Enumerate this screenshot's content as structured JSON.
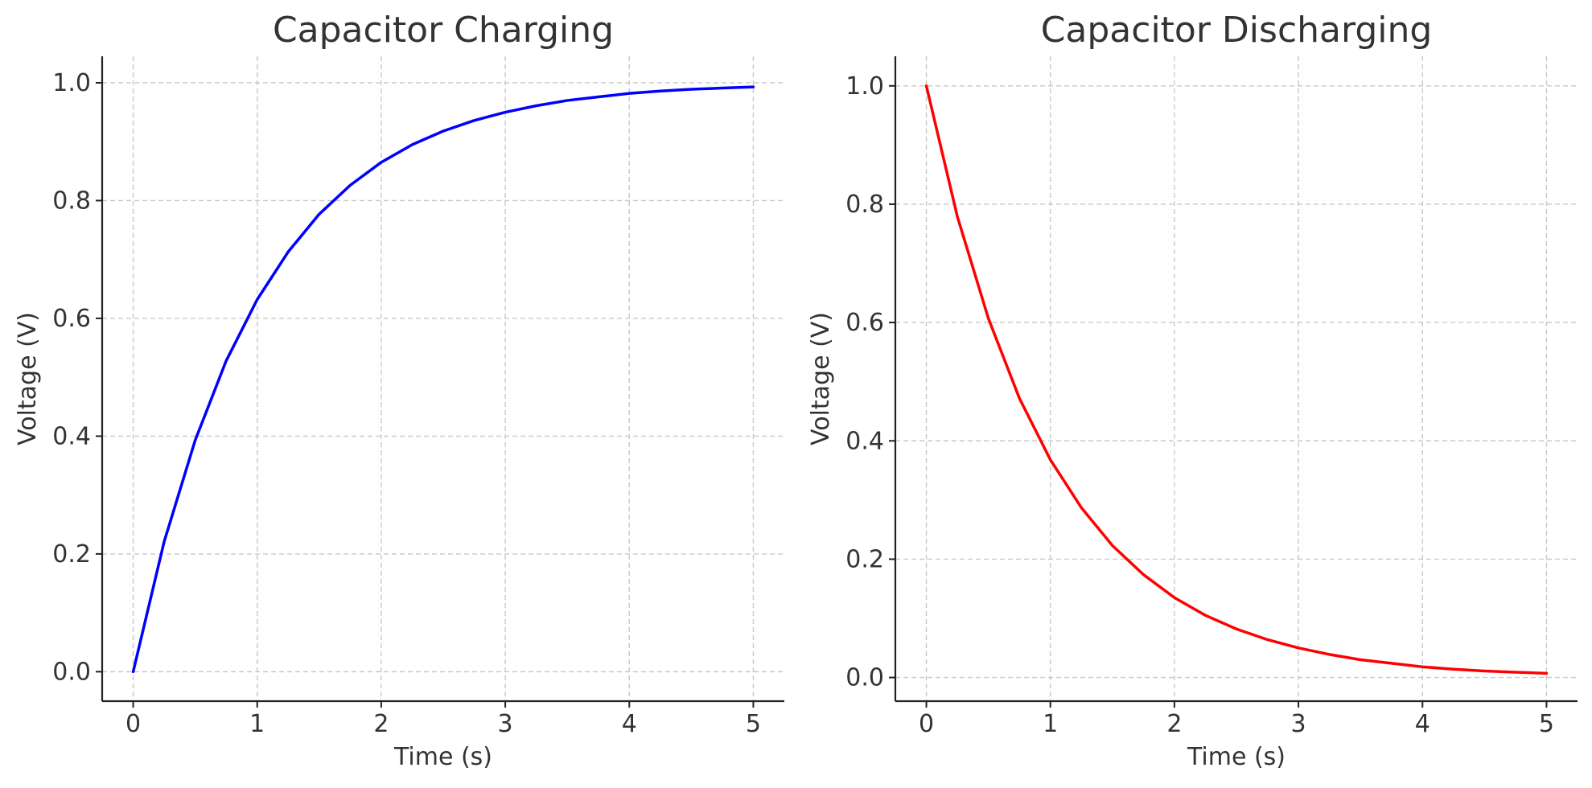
{
  "chart_data": [
    {
      "type": "line",
      "title": "Capacitor Charging",
      "xlabel": "Time (s)",
      "ylabel": "Voltage (V)",
      "xlim": [
        -0.25,
        5.25
      ],
      "ylim": [
        -0.05,
        1.045
      ],
      "xticks": [
        0,
        1,
        2,
        3,
        4,
        5
      ],
      "xtick_labels": [
        "0",
        "1",
        "2",
        "3",
        "4",
        "5"
      ],
      "yticks": [
        0.0,
        0.2,
        0.4,
        0.6,
        0.8,
        1.0
      ],
      "ytick_labels": [
        "0.0",
        "0.2",
        "0.4",
        "0.6",
        "0.8",
        "1.0"
      ],
      "grid": true,
      "series": [
        {
          "name": "charging",
          "color": "#0000ff",
          "x": [
            0,
            0.25,
            0.5,
            0.75,
            1,
            1.25,
            1.5,
            1.75,
            2,
            2.25,
            2.5,
            2.75,
            3,
            3.25,
            3.5,
            3.75,
            4,
            4.25,
            4.5,
            4.75,
            5
          ],
          "y": [
            0.0,
            0.221,
            0.393,
            0.528,
            0.632,
            0.713,
            0.777,
            0.826,
            0.865,
            0.895,
            0.918,
            0.936,
            0.95,
            0.961,
            0.97,
            0.976,
            0.982,
            0.986,
            0.989,
            0.991,
            0.993
          ]
        }
      ]
    },
    {
      "type": "line",
      "title": "Capacitor Discharging",
      "xlabel": "Time (s)",
      "ylabel": "Voltage (V)",
      "xlim": [
        -0.25,
        5.25
      ],
      "ylim": [
        -0.04,
        1.05
      ],
      "xticks": [
        0,
        1,
        2,
        3,
        4,
        5
      ],
      "xtick_labels": [
        "0",
        "1",
        "2",
        "3",
        "4",
        "5"
      ],
      "yticks": [
        0.0,
        0.2,
        0.4,
        0.6,
        0.8,
        1.0
      ],
      "ytick_labels": [
        "0.0",
        "0.2",
        "0.4",
        "0.6",
        "0.8",
        "1.0"
      ],
      "grid": true,
      "series": [
        {
          "name": "discharging",
          "color": "#ff0000",
          "x": [
            0,
            0.25,
            0.5,
            0.75,
            1,
            1.25,
            1.5,
            1.75,
            2,
            2.25,
            2.5,
            2.75,
            3,
            3.25,
            3.5,
            3.75,
            4,
            4.25,
            4.5,
            4.75,
            5
          ],
          "y": [
            1.0,
            0.779,
            0.607,
            0.472,
            0.368,
            0.287,
            0.223,
            0.174,
            0.135,
            0.105,
            0.082,
            0.064,
            0.05,
            0.039,
            0.03,
            0.024,
            0.018,
            0.014,
            0.011,
            0.009,
            0.007
          ]
        }
      ]
    }
  ]
}
